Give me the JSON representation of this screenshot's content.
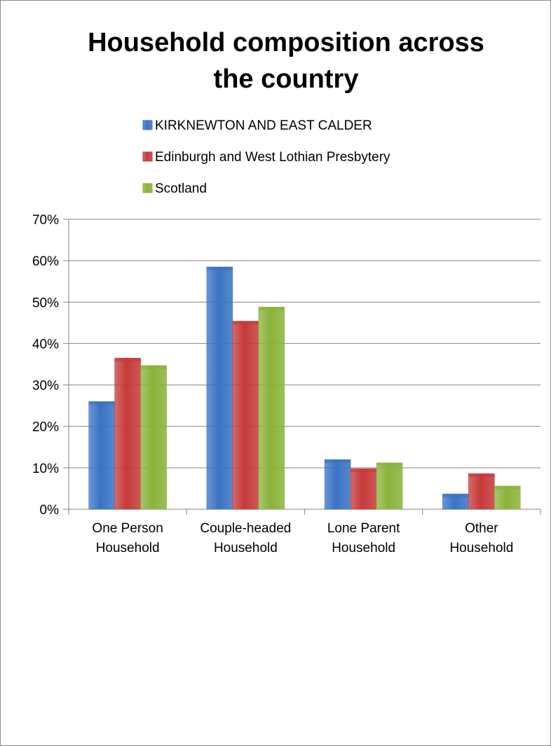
{
  "chart_data": {
    "type": "bar",
    "title_lines": [
      "Household composition across",
      "the country"
    ],
    "categories": [
      [
        "One Person",
        "Household"
      ],
      [
        "Couple-headed",
        "Household"
      ],
      [
        "Lone Parent",
        "Household"
      ],
      [
        "Other",
        "Household"
      ]
    ],
    "series": [
      {
        "name": "KIRKNEWTON AND EAST CALDER",
        "color": "#3a73c4",
        "values": [
          26,
          58.5,
          12,
          3.7
        ]
      },
      {
        "name": "Edinburgh and West Lothian Presbytery",
        "color": "#c63a3a",
        "values": [
          36.5,
          45.4,
          9.8,
          8.6
        ]
      },
      {
        "name": "Scotland",
        "color": "#8ab33a",
        "values": [
          34.7,
          48.8,
          11.2,
          5.6
        ]
      }
    ],
    "ylim": [
      0,
      70
    ],
    "y_ticks": [
      0,
      10,
      20,
      30,
      40,
      50,
      60,
      70
    ],
    "y_tick_labels": [
      "0%",
      "10%",
      "20%",
      "30%",
      "40%",
      "50%",
      "60%",
      "70%"
    ],
    "grid": true,
    "legend_position": "top"
  }
}
